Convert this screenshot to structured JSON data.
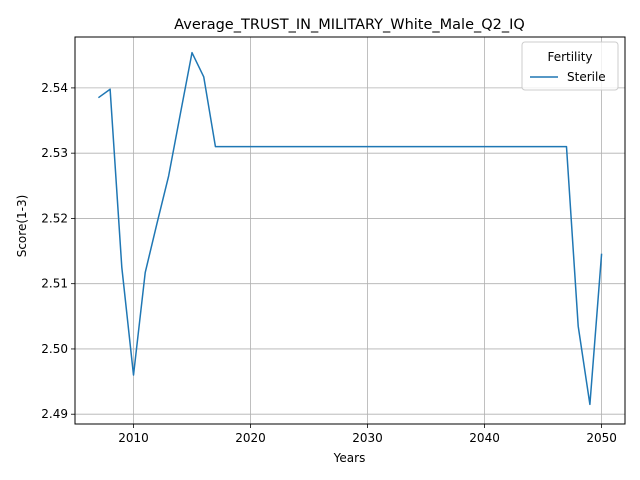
{
  "chart_data": {
    "type": "line",
    "title": "Average_TRUST_IN_MILITARY_White_Male_Q2_IQ",
    "xlabel": "Years",
    "ylabel": "Score(1-3)",
    "xlim": [
      2005,
      2052
    ],
    "ylim": [
      2.4885,
      2.5478
    ],
    "xticks": [
      2010,
      2020,
      2030,
      2040,
      2050
    ],
    "yticks": [
      2.49,
      2.5,
      2.51,
      2.52,
      2.53,
      2.54
    ],
    "ytick_labels": [
      "2.49",
      "2.50",
      "2.51",
      "2.52",
      "2.53",
      "2.54"
    ],
    "grid": true,
    "legend": {
      "title": "Fertility",
      "placement": "top-right"
    },
    "series": [
      {
        "name": "Sterile",
        "color": "#1f77b4",
        "x": [
          2007,
          2008,
          2009,
          2010,
          2011,
          2012,
          2013,
          2014,
          2015,
          2016,
          2017,
          2018,
          2019,
          2020,
          2025,
          2030,
          2035,
          2040,
          2045,
          2046,
          2047,
          2048,
          2049,
          2050
        ],
        "y": [
          2.5385,
          2.5398,
          2.5125,
          2.496,
          2.5117,
          2.5192,
          2.5265,
          2.536,
          2.5454,
          2.5417,
          2.531,
          2.531,
          2.531,
          2.531,
          2.531,
          2.531,
          2.531,
          2.531,
          2.531,
          2.531,
          2.531,
          2.5035,
          2.4915,
          2.5146
        ]
      }
    ]
  }
}
